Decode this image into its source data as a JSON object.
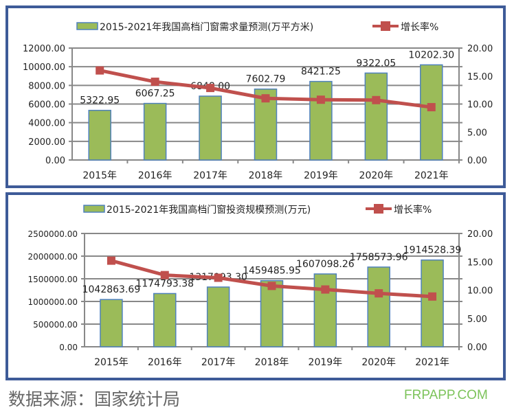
{
  "chart_data": [
    {
      "type": "bar+line",
      "categories": [
        "2015年",
        "2016年",
        "2017年",
        "2018年",
        "2019年",
        "2020年",
        "2021年"
      ],
      "series": [
        {
          "name": "2015-2021年我国高档门窗需求量预测(万平方米)",
          "type": "bar",
          "axis": "left",
          "values": [
            5322.95,
            6067.25,
            6848.0,
            7602.79,
            8421.25,
            9322.05,
            10202.3
          ],
          "labels": [
            "5322.95",
            "6067.25",
            "6848.00",
            "7602.79",
            "8421.25",
            "9322.05",
            "10202.30"
          ]
        },
        {
          "name": "增长率%",
          "type": "line",
          "axis": "right",
          "values": [
            16.0,
            13.98,
            12.87,
            11.02,
            10.77,
            10.7,
            9.44
          ]
        }
      ],
      "ylim": [
        0,
        12000
      ],
      "yticks": [
        "0.00",
        "2000.00",
        "4000.00",
        "6000.00",
        "8000.00",
        "10000.00",
        "12000.00"
      ],
      "y2lim": [
        0,
        20
      ],
      "y2ticks": [
        "0.00",
        "5.00",
        "10.00",
        "15.00",
        "20.00"
      ],
      "legend": "top",
      "grid": true
    },
    {
      "type": "bar+line",
      "categories": [
        "2015年",
        "2016年",
        "2017年",
        "2018年",
        "2019年",
        "2020年",
        "2021年"
      ],
      "series": [
        {
          "name": "2015-2021年我国高档门窗投资规模预测(万元)",
          "type": "bar",
          "axis": "left",
          "values": [
            1042863.69,
            1174793.38,
            1317993.3,
            1459485.95,
            1607098.26,
            1758573.96,
            1914528.39
          ],
          "labels": [
            "1042863.69",
            "1174793.38",
            "1317993.30",
            "1459485.95",
            "1607098.26",
            "1758573.96",
            "1914528.39"
          ]
        },
        {
          "name": "增长率%",
          "type": "line",
          "axis": "right",
          "values": [
            15.2,
            12.65,
            12.18,
            10.74,
            10.11,
            9.43,
            8.87
          ]
        }
      ],
      "ylim": [
        0,
        2500000
      ],
      "yticks": [
        "0.00",
        "500000.00",
        "1000000.00",
        "1500000.00",
        "2000000.00",
        "2500000.00"
      ],
      "y2lim": [
        0,
        20
      ],
      "y2ticks": [
        "0.00",
        "5.00",
        "10.00",
        "15.00",
        "20.00"
      ],
      "legend": "top",
      "grid": true
    }
  ],
  "colors": {
    "bar": "#9bbb59",
    "bar_edge": "#4f81bd",
    "line": "#c0504d",
    "frame": "#3e5b98"
  },
  "footer": {
    "source": "数据来源：国家统计局",
    "brand": "FRPAPP.COM"
  }
}
